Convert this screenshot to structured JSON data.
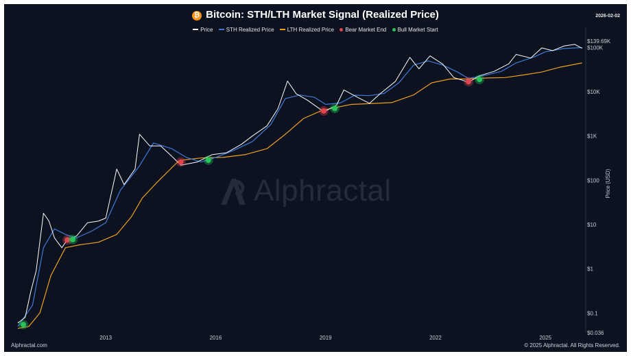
{
  "header": {
    "title": "Bitcoin: STH/LTH Market Signal (Realized Price)",
    "date": "2026-02-02",
    "logo_icon": "bitcoin-icon"
  },
  "legend": {
    "price": "Price",
    "sth": "STH Realized Price",
    "lth": "LTH Realized Price",
    "bear": "Bear Market End",
    "bull": "Bull Market Start"
  },
  "footer": {
    "left": "Alphractal.com",
    "right": "© 2025 Alphractal. All Rights Reserved."
  },
  "watermark": "Alphractal",
  "colors": {
    "background": "#0c1220",
    "price": "#ffffff",
    "sth": "#3d7bd9",
    "lth": "#f0a020",
    "bear": "#e0454f",
    "bull": "#27c45a"
  },
  "chart_data": {
    "type": "line",
    "title": "Bitcoin: STH/LTH Market Signal (Realized Price)",
    "ylabel": "Price (USD)",
    "yscale": "log",
    "ylim": [
      0.036,
      200000
    ],
    "xlim": [
      2010.6,
      2026.1
    ],
    "x_ticks": [
      2013,
      2016,
      2019,
      2022,
      2025
    ],
    "y_ticks": [
      {
        "value": 0.1,
        "label": "$0.1"
      },
      {
        "value": 1,
        "label": "$1"
      },
      {
        "value": 10,
        "label": "$10"
      },
      {
        "value": 100,
        "label": "$100"
      },
      {
        "value": 1000,
        "label": "$1K"
      },
      {
        "value": 10000,
        "label": "$10K"
      },
      {
        "value": 100000,
        "label": "$100K"
      }
    ],
    "y_edge_labels": [
      {
        "value": 0.036,
        "label": "$0.036"
      },
      {
        "value": 139690,
        "label": "$139.69K"
      }
    ],
    "grid": false,
    "legend_position": "top-center",
    "series": [
      {
        "name": "Price",
        "x": [
          2010.6,
          2010.8,
          2010.95,
          2011.1,
          2011.3,
          2011.45,
          2011.6,
          2011.8,
          2011.95,
          2012.2,
          2012.5,
          2012.8,
          2013.0,
          2013.3,
          2013.5,
          2013.8,
          2013.92,
          2014.2,
          2014.5,
          2014.8,
          2015.05,
          2015.5,
          2015.9,
          2016.3,
          2016.7,
          2017.0,
          2017.4,
          2017.7,
          2017.96,
          2018.2,
          2018.5,
          2018.9,
          2019.0,
          2019.3,
          2019.5,
          2019.9,
          2020.2,
          2020.5,
          2020.9,
          2021.3,
          2021.55,
          2021.85,
          2022.2,
          2022.5,
          2022.9,
          2023.2,
          2023.6,
          2024.0,
          2024.2,
          2024.6,
          2024.9,
          2025.2,
          2025.5,
          2025.8,
          2026.0
        ],
        "y": [
          0.06,
          0.08,
          0.3,
          0.9,
          18,
          12,
          5,
          3,
          4.5,
          5.5,
          11,
          12,
          14,
          180,
          80,
          180,
          1100,
          600,
          600,
          350,
          220,
          260,
          380,
          420,
          650,
          1000,
          1700,
          4200,
          17500,
          9000,
          6500,
          3800,
          3700,
          5000,
          11000,
          7300,
          5500,
          9200,
          17000,
          60000,
          33000,
          65000,
          42000,
          21000,
          16500,
          23000,
          29000,
          43000,
          70000,
          58000,
          98000,
          85000,
          108000,
          118000,
          96000
        ]
      },
      {
        "name": "STH Realized Price",
        "x": [
          2010.6,
          2011.0,
          2011.3,
          2011.6,
          2011.9,
          2012.2,
          2012.6,
          2013.0,
          2013.4,
          2013.9,
          2014.3,
          2014.8,
          2015.2,
          2015.6,
          2016.0,
          2016.5,
          2017.0,
          2017.5,
          2017.9,
          2018.3,
          2018.7,
          2019.0,
          2019.4,
          2019.8,
          2020.2,
          2020.6,
          2021.0,
          2021.4,
          2021.8,
          2022.2,
          2022.6,
          2022.9,
          2023.3,
          2023.8,
          2024.2,
          2024.7,
          2025.0,
          2025.5,
          2026.0
        ],
        "y": [
          0.05,
          0.15,
          3,
          8,
          6,
          5,
          7,
          11,
          60,
          200,
          700,
          520,
          330,
          260,
          330,
          480,
          750,
          1800,
          7000,
          8500,
          7500,
          5200,
          5600,
          8400,
          8200,
          9200,
          16000,
          40000,
          50000,
          40000,
          28000,
          20000,
          23000,
          29000,
          45000,
          62000,
          80000,
          95000,
          100000
        ]
      },
      {
        "name": "LTH Realized Price",
        "x": [
          2010.6,
          2010.9,
          2011.2,
          2011.5,
          2011.9,
          2012.3,
          2012.8,
          2013.3,
          2013.7,
          2014.0,
          2014.4,
          2015.0,
          2015.6,
          2016.2,
          2016.8,
          2017.4,
          2017.9,
          2018.4,
          2018.9,
          2019.2,
          2019.7,
          2020.2,
          2020.8,
          2021.4,
          2021.9,
          2022.4,
          2022.9,
          2023.4,
          2023.9,
          2024.4,
          2024.9,
          2025.4,
          2026.0
        ],
        "y": [
          0.045,
          0.05,
          0.1,
          0.7,
          3,
          3.5,
          4,
          6,
          15,
          40,
          90,
          280,
          320,
          330,
          380,
          520,
          1100,
          2500,
          3800,
          4300,
          5200,
          5400,
          5700,
          8500,
          16000,
          19500,
          19500,
          20500,
          21000,
          24000,
          28000,
          36000,
          45000
        ]
      }
    ],
    "bear_market_end": [
      {
        "x": 2011.95,
        "y": 4.5
      },
      {
        "x": 2015.05,
        "y": 260
      },
      {
        "x": 2018.95,
        "y": 3700
      },
      {
        "x": 2022.9,
        "y": 17000
      }
    ],
    "bull_market_start": [
      {
        "x": 2010.75,
        "y": 0.055
      },
      {
        "x": 2012.1,
        "y": 4.6
      },
      {
        "x": 2015.8,
        "y": 285
      },
      {
        "x": 2019.25,
        "y": 4200
      },
      {
        "x": 2023.2,
        "y": 19000
      }
    ]
  }
}
